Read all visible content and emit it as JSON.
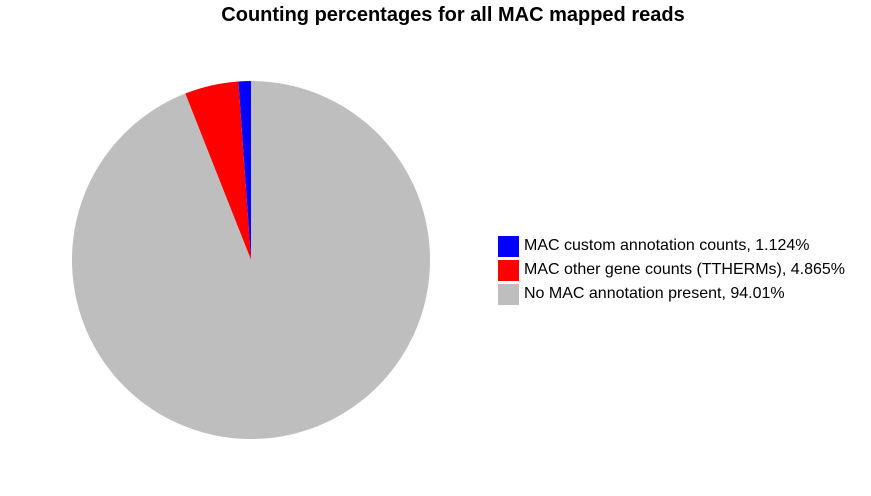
{
  "chart_data": {
    "type": "pie",
    "title": "Counting percentages for all MAC mapped reads",
    "slices": [
      {
        "label": "MAC custom annotation counts, 1.124%",
        "value": 1.124,
        "color": "#0000ff"
      },
      {
        "label": "MAC other gene counts (TTHERMs), 4.865%",
        "value": 4.865,
        "color": "#ff0000"
      },
      {
        "label": "No MAC annotation present, 94.01%",
        "value": 94.01,
        "color": "#bebebe"
      }
    ],
    "start_angle": "12 o'clock",
    "direction": "counter-clockwise",
    "legend_position": "right"
  }
}
